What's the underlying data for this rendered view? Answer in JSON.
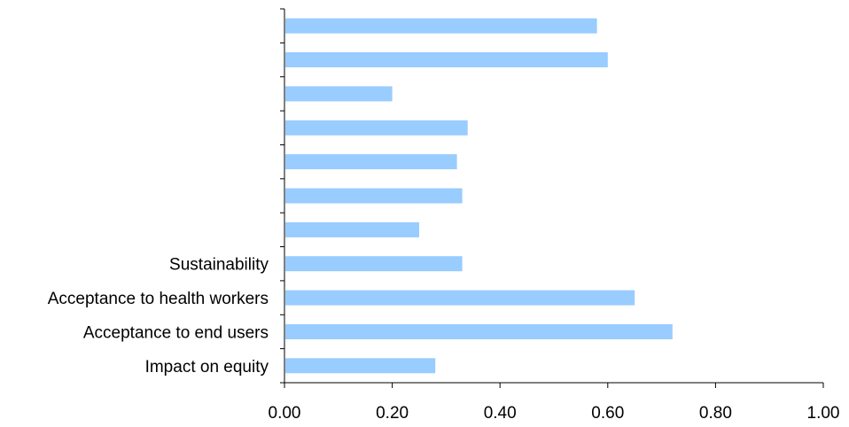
{
  "chart_data": {
    "type": "bar",
    "orientation": "horizontal",
    "categories": [
      "Impact on equity",
      "Acceptance to end users",
      "Acceptance to health workers",
      "Sustainability",
      "",
      "",
      "",
      "",
      "",
      "",
      ""
    ],
    "values": [
      0.28,
      0.72,
      0.65,
      0.33,
      0.25,
      0.33,
      0.32,
      0.34,
      0.2,
      0.6,
      0.58
    ],
    "xlim": [
      0,
      1.0
    ],
    "x_ticks": [
      "0.00",
      "0.20",
      "0.40",
      "0.60",
      "0.80",
      "1.00"
    ],
    "title": "",
    "xlabel": "",
    "ylabel": "",
    "grid": false,
    "legend": "none",
    "colors": {
      "bar": "#99ccff",
      "axis": "#000000"
    }
  }
}
